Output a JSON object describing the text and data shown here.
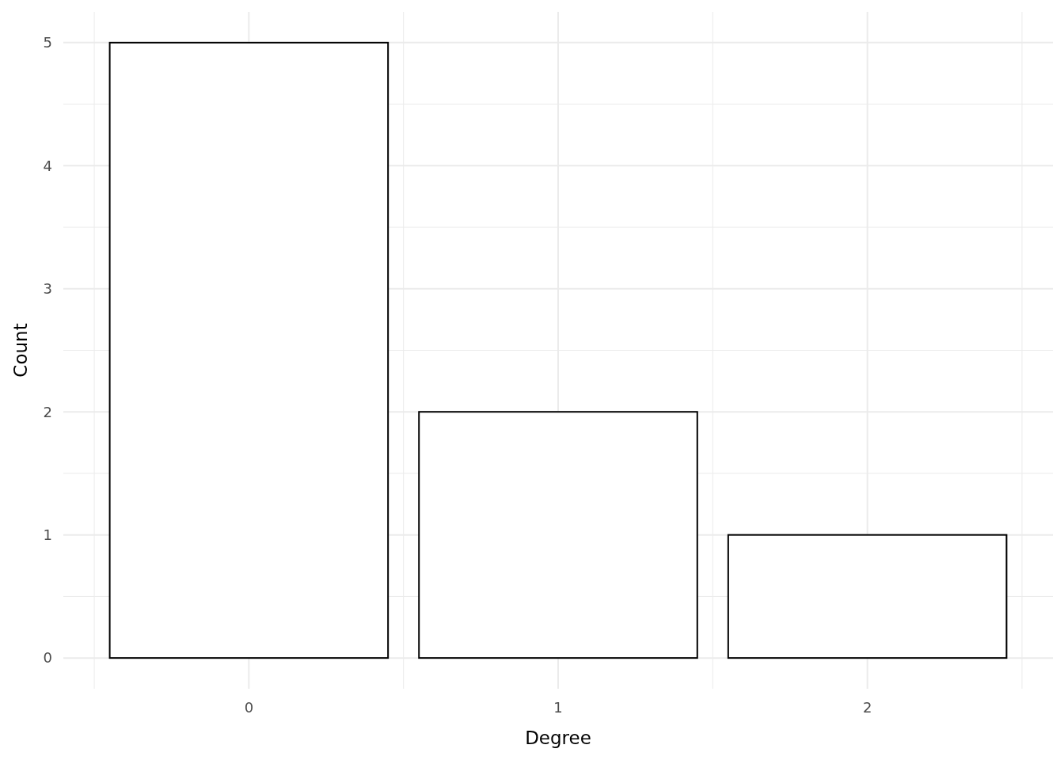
{
  "chart_data": {
    "type": "bar",
    "xlabel": "Degree",
    "ylabel": "Count",
    "categories": [
      "0",
      "1",
      "2"
    ],
    "values": [
      5,
      2,
      1
    ],
    "color": "#ffffff",
    "ylim": [
      -0.25,
      5.25
    ],
    "yticks": [
      0,
      1,
      2,
      3,
      4,
      5
    ],
    "grid": true
  }
}
